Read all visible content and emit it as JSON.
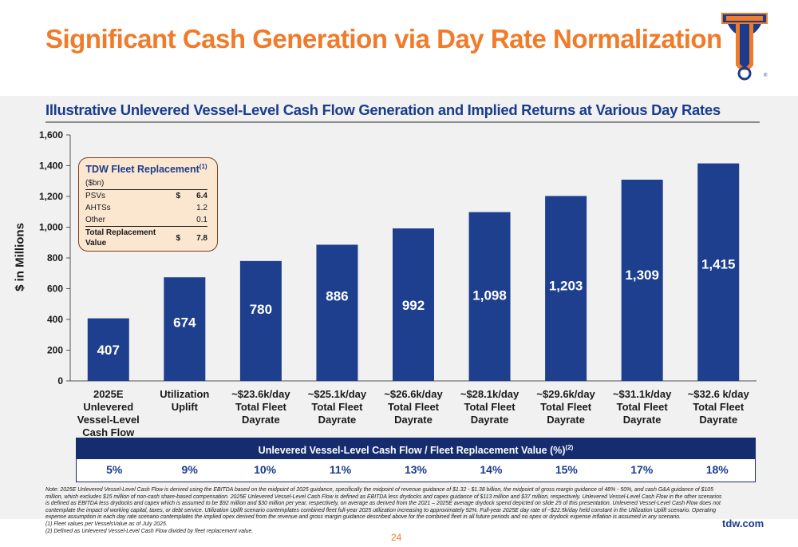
{
  "slide": {
    "title": "Significant Cash Generation via Day Rate Normalization",
    "subtitle": "Illustrative Unlevered Vessel-Level Cash Flow Generation and Implied Returns at Various Day Rates",
    "page_number": "24",
    "site": "tdw.com",
    "accent_color": "#f07b2a",
    "brand_blue": "#1b3c8c",
    "bar_color": "#1d3f8e"
  },
  "chart_data": {
    "type": "bar",
    "categories": [
      "2025E Unlevered\nVessel-Level\nCash Flow",
      "Utilization\nUplift",
      "~$23.6k/day\nTotal Fleet\nDayrate",
      "~$25.1k/day\nTotal Fleet\nDayrate",
      "~$26.6k/day\nTotal Fleet\nDayrate",
      "~$28.1k/day\nTotal Fleet\nDayrate",
      "~$29.6k/day\nTotal Fleet\nDayrate",
      "~$31.1k/day\nTotal Fleet\nDayrate",
      "~$32.6 k/day\nTotal Fleet\nDayrate"
    ],
    "values": [
      407,
      674,
      780,
      886,
      992,
      1098,
      1203,
      1309,
      1415
    ],
    "data_labels": [
      "407",
      "674",
      "780",
      "886",
      "992",
      "1,098",
      "1,203",
      "1,309",
      "1,415"
    ],
    "ylabel": "$ in Millions",
    "ylim": [
      0,
      1600
    ],
    "yticks": [
      0,
      200,
      400,
      600,
      800,
      1000,
      1200,
      1400,
      1600
    ],
    "ytick_labels": [
      "0",
      "200",
      "400",
      "600",
      "800",
      "1,000",
      "1,200",
      "1,400",
      "1,600"
    ],
    "grid": false
  },
  "fleet_box": {
    "title": "TDW Fleet Replacement",
    "title_sup": "(1)",
    "unit": "($bn)",
    "rows": [
      {
        "label": "PSVs",
        "unit": "$",
        "value": "6.4"
      },
      {
        "label": "AHTSs",
        "unit": "",
        "value": "1.2"
      },
      {
        "label": "Other",
        "unit": "",
        "value": "0.1"
      },
      {
        "label": "Total Replacement Value",
        "unit": "$",
        "value": "7.8"
      }
    ]
  },
  "returns": {
    "header": "Unlevered Vessel-Level Cash Flow / Fleet Replacement Value (%)",
    "header_sup": "(2)",
    "values": [
      "5%",
      "9%",
      "10%",
      "11%",
      "13%",
      "14%",
      "15%",
      "17%",
      "18%"
    ]
  },
  "notes": [
    "Note: 2025E Unlevered Vessel-Level Cash Flow is derived using the EBITDA based on the midpoint of 2025 guidance, specifically the midpoint of revenue guidance of $1.32 - $1.38 billion, the midpoint of gross margin guidance of 48% - 50%, and cash G&A guidance of $105 million, which excludes $15 million of non-cash share-based compensation. 2025E Unlevered Vessel-Level Cash Flow is defined as EBITDA less drydocks and capex guidance of $113 million and $37 million, respectively. Unlevered Vessel-Level Cash Flow in the other scenarios is defined as EBITDA less drydocks and capex which is assumed to be $92 million and $30 million per year, respectively, on average as derived from the 2021 – 2025E average drydock spend depicted on slide 25 of this presentation. Unlevered Vessel-Level Cash Flow does not contemplate the impact of working capital, taxes, or debt service. Utilization Uplift scenario contemplates combined fleet full-year 2025 utilization increasing to approximately 92%. Full-year 2025E day rate of ~$22.5k/day held constant in the Utilization Uplift scenario. Operating expense assumption in each day rate scenario contemplates the implied opex derived from the revenue and gross margin guidance described above for the combined fleet in all future periods and no opex or drydock expense inflation is assumed in any scenario.",
    "(1) Fleet values per VesselsValue as of July 2025.",
    "(2) Defined as Unlevered Vessel-Level Cash Flow  divided by fleet replacement value."
  ]
}
